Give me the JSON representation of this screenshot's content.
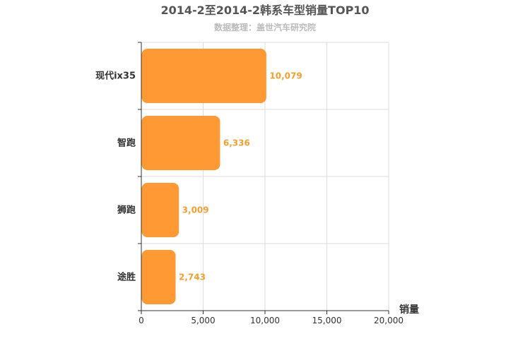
{
  "chart_data": {
    "type": "bar",
    "orientation": "horizontal",
    "title": "2014-2至2014-2韩系车型销量TOP10",
    "subtitle": "数据整理：盖世汽车研究院",
    "categories": [
      "现代ix35",
      "智跑",
      "狮跑",
      "途胜"
    ],
    "values": [
      10079,
      6336,
      3009,
      2743
    ],
    "value_labels": [
      "10,079",
      "6,336",
      "3,009",
      "2,743"
    ],
    "xlabel": "销量",
    "xlim": [
      0,
      20000
    ],
    "xticks": [
      0,
      5000,
      10000,
      15000,
      20000
    ],
    "xtick_labels": [
      "0",
      "5,000",
      "10,000",
      "15,000",
      "20,000"
    ],
    "grid": true,
    "bar_color": "#ff9933",
    "value_label_color": "#f0a030"
  }
}
